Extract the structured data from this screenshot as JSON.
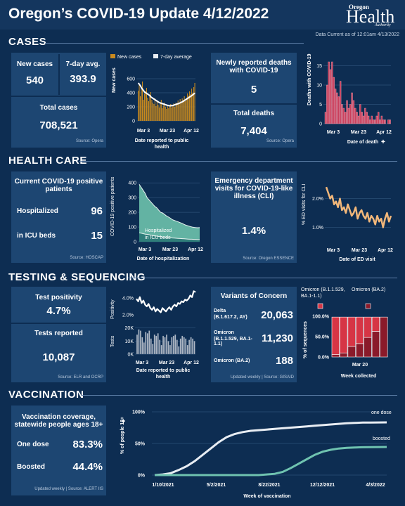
{
  "header": {
    "title": "Oregon’s COVID-19 Update 4/12/2022",
    "logo_top": "Oregon",
    "logo_main": "Health",
    "logo_bottom": "Authority",
    "data_current": "Data Current as of 12:01am 4/13/2022"
  },
  "cases": {
    "section": "CASES",
    "new_cases_label": "New cases",
    "new_cases_value": "540",
    "avg_label": "7-day avg.",
    "avg_value": "393.9",
    "total_label": "Total cases",
    "total_value": "708,521",
    "source": "Source: Opera",
    "deaths_label": "Newly reported deaths with COVID-19",
    "deaths_value": "5",
    "total_deaths_label": "Total deaths",
    "total_deaths_value": "7,404",
    "deaths_source": "Source: Opera"
  },
  "health": {
    "section": "HEALTH CARE",
    "patients_title": "Current COVID-19 positive patients",
    "hosp_label": "Hospitalized",
    "hosp_value": "96",
    "icu_label": "in ICU beds",
    "icu_value": "15",
    "source": "Source: HOSCAP",
    "ed_title": "Emergency department visits for COVID-19-like illness (CLI)",
    "ed_value": "1.4%",
    "ed_source": "Source: Oregon ESSENCE"
  },
  "testing": {
    "section": "TESTING & SEQUENCING",
    "positivity_label": "Test positivity",
    "positivity_value": "4.7%",
    "reported_label": "Tests reported",
    "reported_value": "10,087",
    "source": "Source: ELR and OCRP",
    "variants_title": "Variants of Concern",
    "variants": [
      {
        "name": "Delta",
        "sub": "(B.1.617.2, AY)",
        "value": "20,063"
      },
      {
        "name": "Omicron",
        "sub": "(B.1.1.529, BA.1-1.1)",
        "value": "11,230"
      },
      {
        "name": "Omicron (BA.2)",
        "sub": "",
        "value": "188"
      }
    ],
    "variants_source": "Updated weekly | Source: GISAID"
  },
  "vaccination": {
    "section": "VACCINATION",
    "coverage_title": "Vaccination coverage, statewide people ages 18+",
    "one_dose_label": "One dose",
    "one_dose_value": "83.3%",
    "boosted_label": "Boosted",
    "boosted_value": "44.4%",
    "source": "Updated weekly | Source: ALERT IIS"
  },
  "colors": {
    "background": "#0d2d52",
    "card": "#1d4672",
    "cases_bar": "#c98a1e",
    "deaths_bar": "#c93d5a",
    "hosp_fill": "#63b3a3",
    "ed_line": "#f2b77a",
    "variant_delta": "#d63545",
    "variant_ba2": "#8a1a2a",
    "dose_line": "#e8edf3",
    "boost_line": "#6fc3b0"
  },
  "chart_data": [
    {
      "type": "bar",
      "id": "new-cases",
      "xlabel": "Date reported to public health",
      "ylabel": "New cases",
      "legend": [
        "New cases",
        "7-day average"
      ],
      "x_ticks": [
        "Mar 3",
        "Mar 23",
        "Apr 12"
      ],
      "y_ticks": [
        0,
        200,
        400,
        600
      ],
      "ylim": [
        0,
        700
      ],
      "values": [
        430,
        510,
        350,
        480,
        560,
        300,
        390,
        420,
        470,
        330,
        280,
        350,
        410,
        300,
        260,
        240,
        320,
        210,
        280,
        230,
        190,
        250,
        300,
        180,
        220,
        260,
        200,
        170,
        230,
        180,
        210,
        240,
        190,
        220,
        250,
        200,
        260,
        230,
        290,
        240,
        310,
        270,
        320,
        300,
        350,
        280,
        330,
        390,
        360,
        420,
        380,
        460,
        400,
        480,
        540
      ],
      "avg": [
        540,
        520,
        500,
        470,
        450,
        430,
        410,
        400,
        390,
        380,
        370,
        360,
        340,
        330,
        320,
        310,
        300,
        290,
        280,
        270,
        260,
        255,
        250,
        245,
        240,
        235,
        230,
        225,
        220,
        218,
        215,
        215,
        218,
        220,
        225,
        230,
        235,
        240,
        245,
        250,
        258,
        265,
        272,
        280,
        290,
        300,
        310,
        320,
        330,
        340,
        350,
        360,
        372,
        385,
        394
      ]
    },
    {
      "type": "bar",
      "id": "deaths",
      "xlabel": "Date of death",
      "ylabel": "Deaths with COVID-19",
      "x_ticks": [
        "Mar 3",
        "Mar 23",
        "Apr 12"
      ],
      "y_ticks": [
        0,
        5,
        10,
        15
      ],
      "ylim": [
        0,
        16
      ],
      "values": [
        3,
        10,
        16,
        14,
        16,
        12,
        9,
        8,
        7,
        11,
        5,
        4,
        3,
        6,
        4,
        5,
        8,
        6,
        4,
        3,
        2,
        5,
        3,
        2,
        4,
        3,
        2,
        1,
        2,
        1,
        1,
        2,
        3,
        1,
        2,
        1,
        1,
        0,
        1,
        1
      ]
    },
    {
      "type": "area",
      "id": "hospitalization",
      "xlabel": "Date of hospitalization",
      "ylabel": "COVID-19 positive patients",
      "x_ticks": [
        "Mar 3",
        "Mar 23",
        "Apr 12"
      ],
      "y_ticks": [
        0,
        100,
        200,
        300,
        400
      ],
      "ylim": [
        0,
        420
      ],
      "series": [
        {
          "name": "Hospitalized",
          "values": [
            390,
            370,
            350,
            330,
            300,
            285,
            270,
            255,
            240,
            230,
            215,
            200,
            195,
            185,
            175,
            168,
            160,
            150,
            145,
            140,
            135,
            130,
            125,
            118,
            112,
            108,
            104,
            100,
            98,
            96,
            95,
            96
          ]
        },
        {
          "name": "in ICU beds",
          "values": [
            60,
            58,
            55,
            52,
            50,
            48,
            45,
            43,
            40,
            38,
            36,
            34,
            32,
            30,
            29,
            28,
            27,
            26,
            25,
            24,
            23,
            22,
            21,
            20,
            19,
            18,
            17,
            17,
            16,
            16,
            15,
            15
          ]
        }
      ]
    },
    {
      "type": "line",
      "id": "ed-visits",
      "xlabel": "Date of ED visit",
      "ylabel": "% ED visits for CLI",
      "x_ticks": [
        "Mar 3",
        "Mar 23",
        "Apr 12"
      ],
      "y_ticks": [
        "1.0%",
        "2.0%"
      ],
      "ylim": [
        0.5,
        2.6
      ],
      "values": [
        2.4,
        2.2,
        2.0,
        2.1,
        1.8,
        1.9,
        1.7,
        2.0,
        1.6,
        1.7,
        1.5,
        1.8,
        1.6,
        1.4,
        1.5,
        1.7,
        1.3,
        1.5,
        1.6,
        1.4,
        1.3,
        1.5,
        1.2,
        1.4,
        1.3,
        1.1,
        1.4,
        1.2,
        1.3,
        1.0,
        1.3,
        1.5,
        1.2,
        1.4
      ]
    },
    {
      "type": "line",
      "id": "positivity",
      "xlabel": "Date reported to public health",
      "ylabel": "Positivity",
      "y_ticks": [
        "2.0%",
        "4.0%"
      ],
      "ylim": [
        1.5,
        5.0
      ],
      "values": [
        3.9,
        3.6,
        4.1,
        3.4,
        3.7,
        3.2,
        3.0,
        3.3,
        2.8,
        2.6,
        2.9,
        2.4,
        2.7,
        2.5,
        2.3,
        2.8,
        2.6,
        2.4,
        2.7,
        2.9,
        2.6,
        3.0,
        3.2,
        3.0,
        3.4,
        3.3,
        3.6,
        3.5,
        3.8,
        3.7,
        3.9,
        4.3,
        4.1,
        4.8,
        4.7
      ]
    },
    {
      "type": "bar",
      "id": "tests",
      "xlabel": "Date reported to public health",
      "ylabel": "Tests",
      "x_ticks": [
        "Mar 3",
        "Mar 23",
        "Apr 12"
      ],
      "y_ticks": [
        "0K",
        "10K",
        "20K"
      ],
      "ylim": [
        0,
        22000
      ],
      "values": [
        15000,
        19000,
        18000,
        13000,
        9000,
        17000,
        16000,
        18000,
        12000,
        8000,
        15000,
        14000,
        16000,
        11000,
        7000,
        14000,
        13000,
        15000,
        10000,
        7000,
        13000,
        14000,
        15000,
        11000,
        6000,
        12000,
        14000,
        13000,
        12000,
        7000,
        11000,
        13000,
        12000,
        10087
      ]
    },
    {
      "type": "bar",
      "id": "variant-sequences",
      "stacked": true,
      "xlabel": "Week collected",
      "ylabel": "% of sequences",
      "x_ticks": [
        "Mar 20"
      ],
      "y_ticks": [
        "0.0%",
        "50.0%",
        "100.0%"
      ],
      "legend": [
        "Omicron (B.1.1.529, BA.1-1.1)",
        "Omicron (BA.2)"
      ],
      "series": [
        {
          "name": "Omicron (B.1.1.529, BA.1-1.1)",
          "values": [
            92,
            88,
            72,
            65,
            50,
            35,
            0
          ]
        },
        {
          "name": "Omicron (BA.2)",
          "values": [
            6,
            10,
            26,
            33,
            48,
            63,
            98
          ]
        }
      ]
    },
    {
      "type": "line",
      "id": "vaccination",
      "xlabel": "Week of vaccination",
      "ylabel": "% of people 18+",
      "x_ticks": [
        "1/10/2021",
        "5/2/2021",
        "8/22/2021",
        "12/12/2021",
        "4/3/2022"
      ],
      "y_ticks": [
        "0%",
        "50%",
        "100%"
      ],
      "ylim": [
        0,
        100
      ],
      "series": [
        {
          "name": "one dose",
          "values": [
            0,
            1,
            3,
            8,
            14,
            22,
            32,
            42,
            52,
            60,
            65,
            68,
            70,
            71,
            72,
            73,
            74,
            75,
            76,
            77,
            78,
            79,
            80,
            81,
            82,
            82.5,
            83,
            83.1,
            83.2,
            83.3
          ]
        },
        {
          "name": "boosted",
          "values": [
            0,
            0,
            0,
            0,
            0,
            0,
            0,
            0,
            0,
            0,
            0,
            0,
            0,
            0,
            1,
            2,
            5,
            11,
            18,
            25,
            32,
            37,
            40,
            42,
            43,
            43.6,
            44,
            44.2,
            44.3,
            44.4
          ]
        }
      ]
    }
  ]
}
